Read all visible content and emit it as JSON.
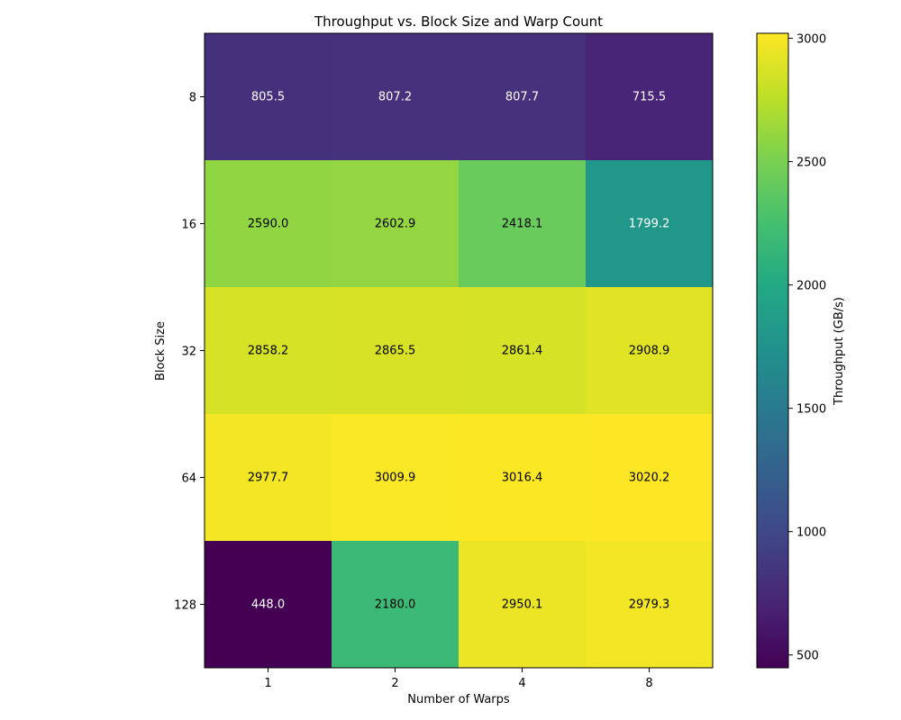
{
  "chart_data": {
    "type": "heatmap",
    "title": "Throughput vs. Block Size and Warp Count",
    "xlabel": "Number of Warps",
    "ylabel": "Block Size",
    "x_categories": [
      "1",
      "2",
      "4",
      "8"
    ],
    "y_categories": [
      "8",
      "16",
      "32",
      "64",
      "128"
    ],
    "values": [
      [
        805.5,
        807.2,
        807.7,
        715.5
      ],
      [
        2590.0,
        2602.9,
        2418.1,
        1799.2
      ],
      [
        2858.2,
        2865.5,
        2861.4,
        2908.9
      ],
      [
        2977.7,
        3009.9,
        3016.4,
        3020.2
      ],
      [
        448.0,
        2180.0,
        2950.1,
        2979.3
      ]
    ],
    "colormap": "viridis",
    "color_range": [
      448.0,
      3020.2
    ],
    "colorbar": {
      "label": "Throughput (GB/s)",
      "ticks": [
        500,
        1000,
        1500,
        2000,
        2500,
        3000
      ]
    },
    "annotation_colors": {
      "light": "#ffffff",
      "dark": "#000000"
    }
  }
}
